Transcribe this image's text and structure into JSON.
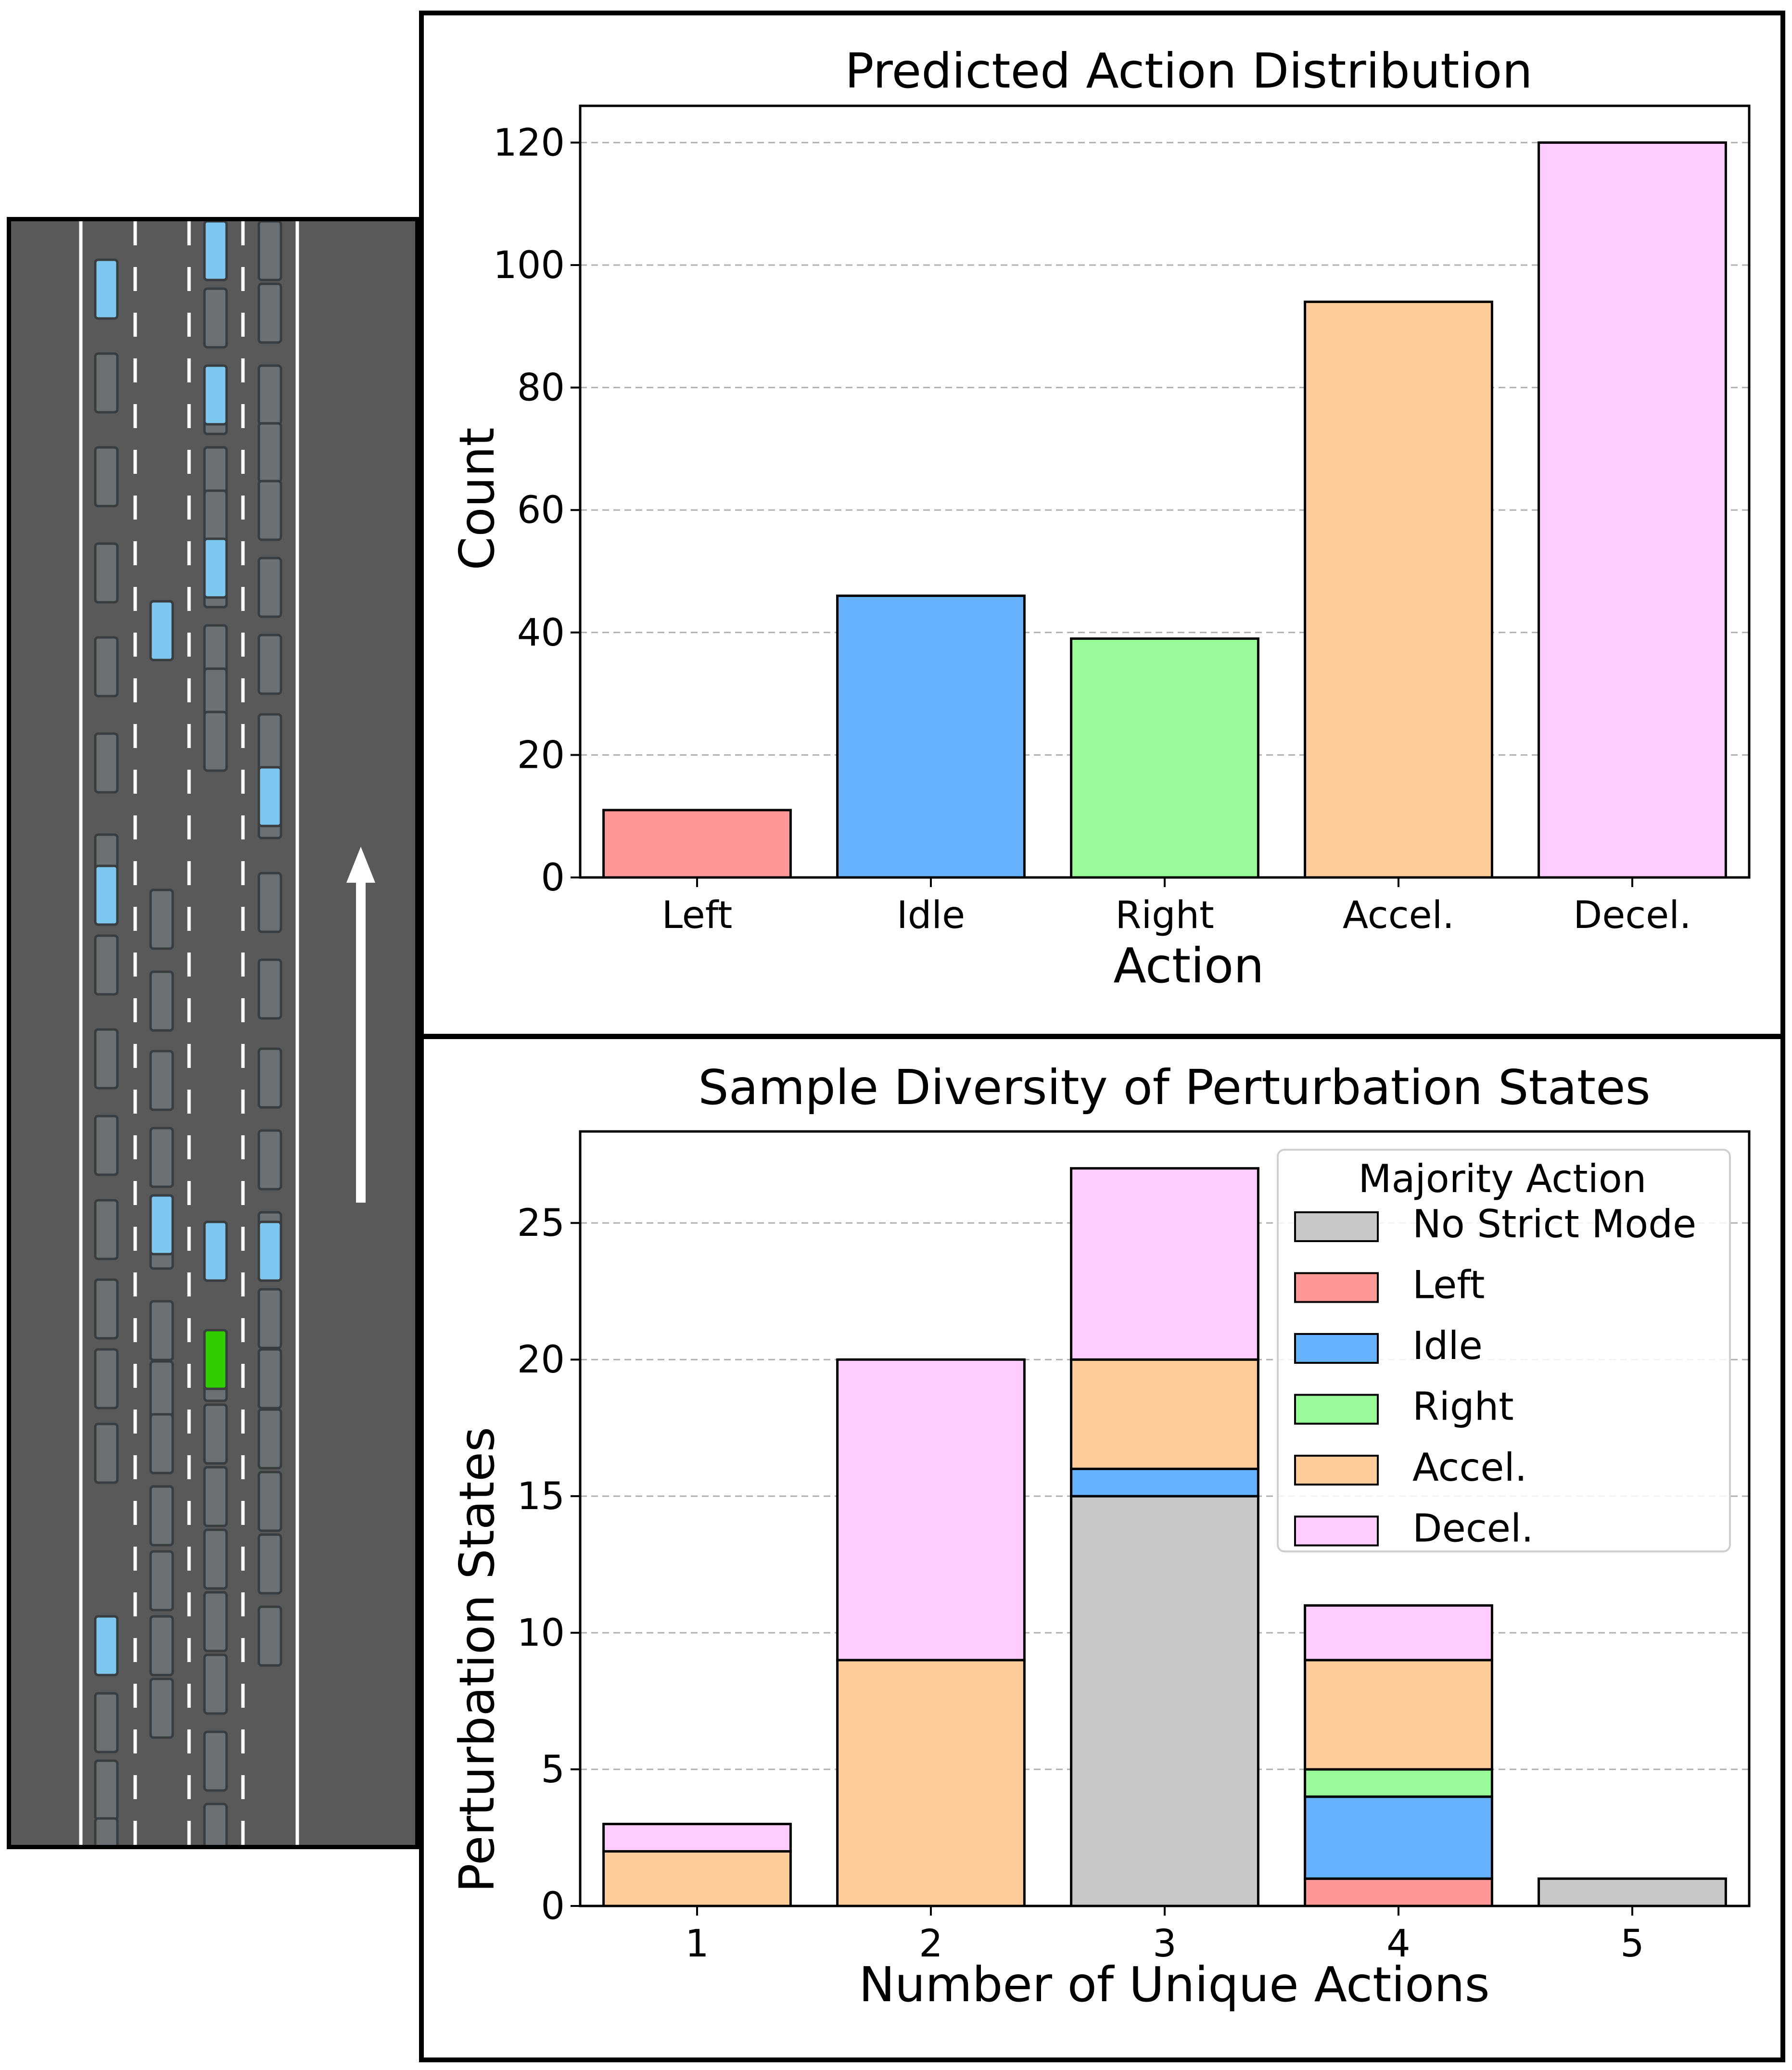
{
  "colors": {
    "No Strict Mode": "#c8c8c8",
    "Left": "#ff9896",
    "Idle": "#66b2ff",
    "Right": "#98fb98",
    "Accel.": "#ffcc99",
    "Decel.": "#ffccff",
    "road": "#595959",
    "vehicle": "#6b7072",
    "observed_vehicle": "#7ec8f0",
    "ego_vehicle": "#33cc00"
  },
  "road_scene": {
    "description_label": "",
    "direction_icon": "up-arrow-icon"
  },
  "chart_data": [
    {
      "type": "bar",
      "title": "Predicted Action Distribution",
      "xlabel": "Action",
      "ylabel": "Count",
      "categories": [
        "Left",
        "Idle",
        "Right",
        "Accel.",
        "Decel."
      ],
      "values": [
        11,
        46,
        39,
        94,
        120
      ],
      "ylim": [
        0,
        126
      ],
      "yticks": [
        0,
        20,
        40,
        60,
        80,
        100,
        120
      ],
      "grid": "horizontal dashed"
    },
    {
      "type": "bar",
      "stacked": true,
      "title": "Sample Diversity of Perturbation States",
      "xlabel": "Number of Unique Actions",
      "ylabel": "Perturbation States",
      "categories": [
        "1",
        "2",
        "3",
        "4",
        "5"
      ],
      "ylim": [
        0,
        28.35
      ],
      "yticks": [
        0,
        5,
        10,
        15,
        20,
        25
      ],
      "grid": "horizontal dashed",
      "legend_title": "Majority Action",
      "legend_position": "top-right",
      "series": [
        {
          "name": "No Strict Mode",
          "values": [
            0,
            0,
            15,
            0,
            1
          ]
        },
        {
          "name": "Left",
          "values": [
            0,
            0,
            0,
            1,
            0
          ]
        },
        {
          "name": "Idle",
          "values": [
            0,
            0,
            1,
            3,
            0
          ]
        },
        {
          "name": "Right",
          "values": [
            0,
            0,
            0,
            1,
            0
          ]
        },
        {
          "name": "Accel.",
          "values": [
            2,
            9,
            4,
            4,
            0
          ]
        },
        {
          "name": "Decel.",
          "values": [
            1,
            11,
            7,
            2,
            0
          ]
        }
      ]
    }
  ]
}
